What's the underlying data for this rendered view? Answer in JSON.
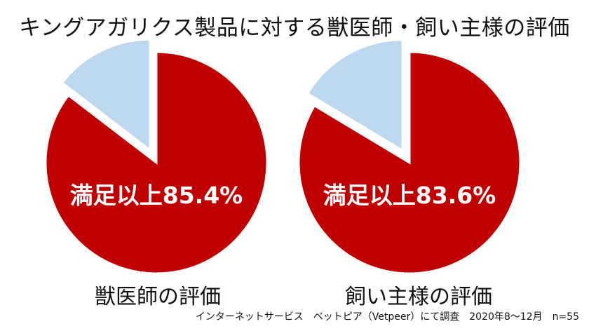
{
  "page": {
    "title": "キングアガリクス製品に対する獣医師・飼い主様の評価",
    "footnote": "インターネットサービス　ベットピア（Vetpeer）にて調査　2020年8～12月　n=55"
  },
  "colors": {
    "satisfied": "#c00000",
    "other": "#bdd7ee",
    "label_text": "#ffffff"
  },
  "chart_data": [
    {
      "type": "pie",
      "caption": "獣医師の評価",
      "center_label": "満足以上85.4%",
      "slices": [
        {
          "value": 85.4,
          "color": "#c00000",
          "exploded": false
        },
        {
          "value": 14.6,
          "color": "#bdd7ee",
          "exploded": true
        }
      ]
    },
    {
      "type": "pie",
      "caption": "飼い主様の評価",
      "center_label": "満足以上83.6%",
      "slices": [
        {
          "value": 83.6,
          "color": "#c00000",
          "exploded": false
        },
        {
          "value": 16.4,
          "color": "#bdd7ee",
          "exploded": true
        }
      ]
    }
  ]
}
